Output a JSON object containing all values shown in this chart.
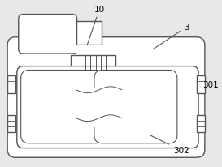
{
  "background_color": "#e8e8e8",
  "line_color": "#555555",
  "line_width": 1.0,
  "label_fontsize": 7.5,
  "figsize": [
    2.73,
    2.07
  ],
  "dpi": 100
}
